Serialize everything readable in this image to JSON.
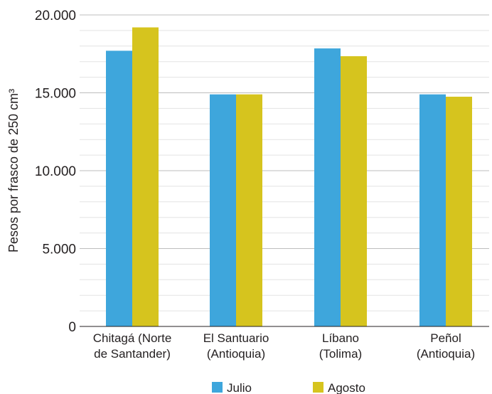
{
  "chart_data": {
    "type": "bar",
    "title": "",
    "xlabel": "",
    "ylabel": "Pesos por frasco de 250 cm³",
    "ylim": [
      0,
      20000
    ],
    "yticks": [
      0,
      5000,
      10000,
      15000,
      20000
    ],
    "ytick_labels": [
      "0",
      "5.000",
      "10.000",
      "15.000",
      "20.000"
    ],
    "grid": "horizontal, minor lines every 1.000",
    "legend_position": "bottom",
    "categories": [
      [
        "Chitagá (Norte",
        "de Santander)"
      ],
      [
        "El Santuario",
        "(Antioquia)"
      ],
      [
        "Líbano",
        "(Tolima)"
      ],
      [
        "Peñol",
        "(Antioquia)"
      ]
    ],
    "series": [
      {
        "name": "Julio",
        "color": "#3ea6dc",
        "values": [
          17700,
          14900,
          17850,
          14900
        ]
      },
      {
        "name": "Agosto",
        "color": "#d6c41e",
        "values": [
          19200,
          14900,
          17350,
          14750
        ]
      }
    ]
  }
}
